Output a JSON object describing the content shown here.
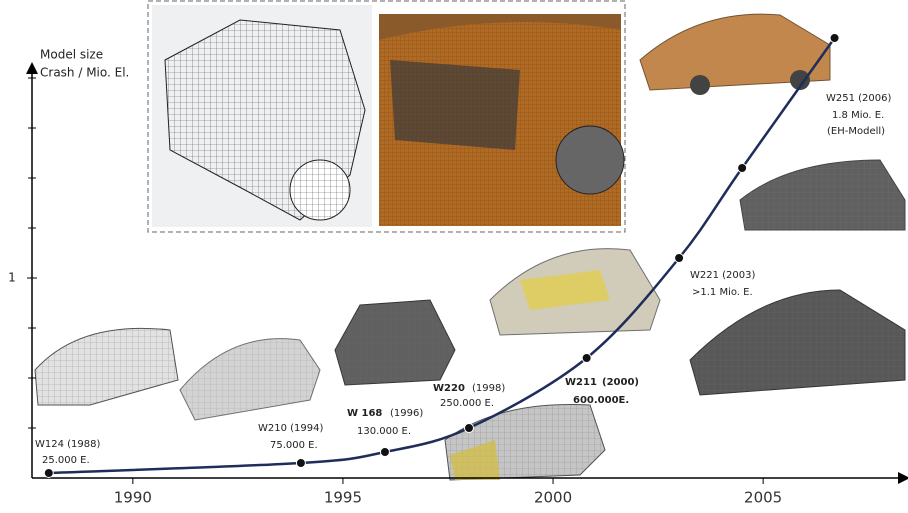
{
  "chart_data": {
    "type": "line",
    "y_axis_label": [
      "Model size",
      "Crash / Mio. El."
    ],
    "x": [
      1988,
      1994,
      1996,
      1998,
      2000.8,
      2003,
      2004.5,
      2006.7
    ],
    "series": [
      {
        "color": "#1f2d5a",
        "values": [
          0.025,
          0.075,
          0.13,
          0.25,
          0.6,
          1.1,
          1.55,
          2.2
        ]
      }
    ],
    "xlim": [
      1987.6,
      2008.4
    ],
    "ylim": [
      0,
      2.05
    ],
    "xticks": [
      1990,
      1995,
      2000,
      2005
    ],
    "yticks": [
      1
    ],
    "y_minor_ticks": [
      0.25,
      0.5,
      0.75,
      1.25,
      1.5,
      1.75,
      2
    ],
    "annotations": [
      "W124 (1988)",
      "25.000 E.",
      "W210   (1994)",
      "75.000 E.",
      "W 168",
      "(1996)",
      "130.000 E.",
      "W220",
      "(1998)",
      "250.000 E.",
      "W211",
      "(2000)",
      "600.000E.",
      "W221  (2003)",
      ">1.1 Mio. E.",
      "W251 (2006)",
      "1.8 Mio. E.",
      "(EH-Modell)"
    ]
  }
}
